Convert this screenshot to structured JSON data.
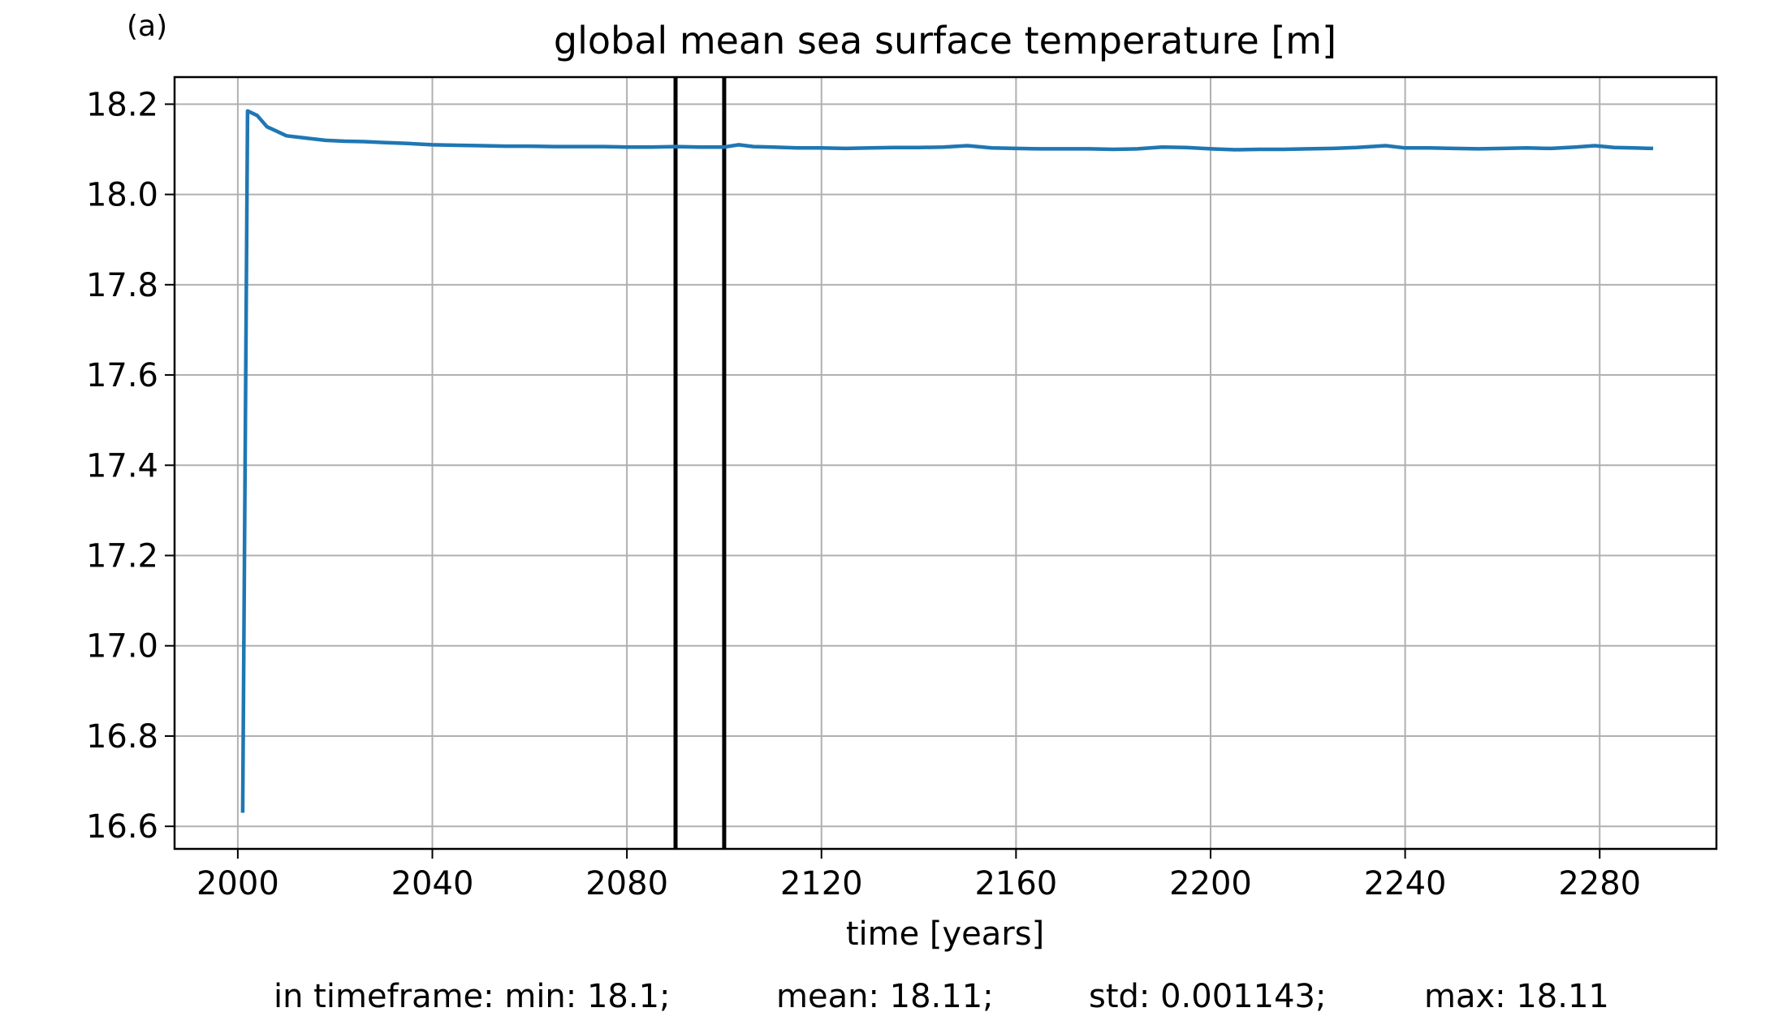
{
  "panel_label": "(a)",
  "chart_data": {
    "type": "line",
    "title": "global mean sea surface temperature [m]",
    "xlabel": "time [years]",
    "ylabel": "",
    "xlim": [
      1987,
      2304
    ],
    "ylim": [
      16.55,
      18.26
    ],
    "xticks": [
      2000,
      2040,
      2080,
      2120,
      2160,
      2200,
      2240,
      2280
    ],
    "yticks": [
      16.6,
      16.8,
      17.0,
      17.2,
      17.4,
      17.6,
      17.8,
      18.0,
      18.2
    ],
    "ytick_labels": [
      "16.6",
      "16.8",
      "17.0",
      "17.2",
      "17.4",
      "17.6",
      "17.8",
      "18.0",
      "18.2"
    ],
    "grid": true,
    "line_color": "#1f77b4",
    "vertical_lines": [
      2090,
      2100
    ],
    "vertical_line_color": "#000000",
    "series": [
      {
        "x": [
          2001,
          2002,
          2004,
          2006,
          2008,
          2010,
          2014,
          2018,
          2022,
          2026,
          2030,
          2035,
          2040,
          2045,
          2050,
          2055,
          2060,
          2065,
          2070,
          2075,
          2080,
          2085,
          2090,
          2095,
          2100,
          2103,
          2106,
          2110,
          2115,
          2120,
          2125,
          2130,
          2135,
          2140,
          2145,
          2150,
          2155,
          2160,
          2165,
          2170,
          2175,
          2180,
          2185,
          2190,
          2195,
          2200,
          2205,
          2210,
          2215,
          2220,
          2225,
          2230,
          2236,
          2240,
          2245,
          2250,
          2255,
          2260,
          2265,
          2270,
          2275,
          2279,
          2283,
          2287,
          2291
        ],
        "y": [
          16.63,
          18.185,
          18.175,
          18.15,
          18.14,
          18.13,
          18.125,
          18.12,
          18.118,
          18.117,
          18.115,
          18.113,
          18.11,
          18.109,
          18.108,
          18.107,
          18.107,
          18.106,
          18.106,
          18.106,
          18.105,
          18.105,
          18.106,
          18.105,
          18.105,
          18.11,
          18.106,
          18.105,
          18.103,
          18.103,
          18.102,
          18.103,
          18.104,
          18.104,
          18.105,
          18.108,
          18.103,
          18.102,
          18.101,
          18.101,
          18.101,
          18.1,
          18.101,
          18.105,
          18.104,
          18.101,
          18.099,
          18.1,
          18.1,
          18.101,
          18.102,
          18.104,
          18.108,
          18.103,
          18.103,
          18.102,
          18.101,
          18.102,
          18.103,
          18.102,
          18.105,
          18.108,
          18.104,
          18.103,
          18.102
        ]
      }
    ]
  },
  "stats": {
    "prefix": "in timeframe: min: 18.1;",
    "mean": "mean: 18.11;",
    "std": "std: 0.001143;",
    "max": "max: 18.11"
  }
}
